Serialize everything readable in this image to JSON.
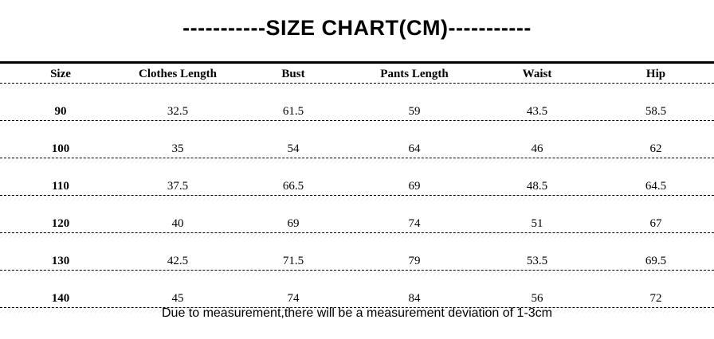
{
  "page": {
    "title": "-----------SIZE CHART(CM)-----------",
    "footnote": "Due to measurement,there will be a measurement deviation of 1-3cm"
  },
  "colors": {
    "text": "#000000",
    "background": "#ffffff",
    "rule": "#000000"
  },
  "chart_data": {
    "type": "table",
    "title": "SIZE CHART(CM)",
    "units": "cm",
    "columns": [
      "Size",
      "Clothes Length",
      "Bust",
      "Pants Length",
      "Waist",
      "Hip"
    ],
    "rows": [
      [
        "90",
        "32.5",
        "61.5",
        "59",
        "43.5",
        "58.5"
      ],
      [
        "100",
        "35",
        "54",
        "64",
        "46",
        "62"
      ],
      [
        "110",
        "37.5",
        "66.5",
        "69",
        "48.5",
        "64.5"
      ],
      [
        "120",
        "40",
        "69",
        "74",
        "51",
        "67"
      ],
      [
        "130",
        "42.5",
        "71.5",
        "79",
        "53.5",
        "69.5"
      ],
      [
        "140",
        "45",
        "74",
        "84",
        "56",
        "72"
      ]
    ],
    "footnote": "Due to measurement,there will be a measurement deviation of 1-3cm"
  }
}
